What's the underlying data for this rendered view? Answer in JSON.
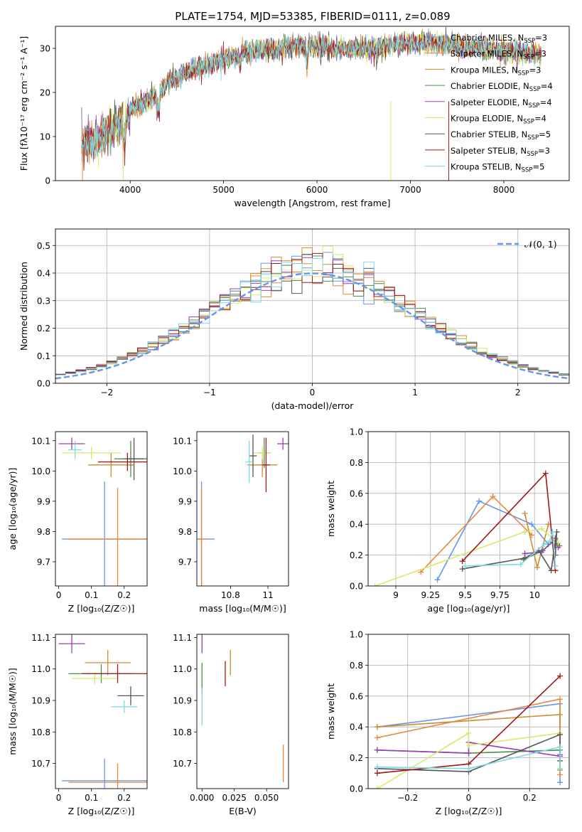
{
  "figure_title": "PLATE=1754, MJD=53385, FIBERID=0111, z=0.089",
  "colors": [
    "#6495ED",
    "#E8873A",
    "#D08A2E",
    "#4E8E4E",
    "#9B3DB5",
    "#D9E86A",
    "#555555",
    "#A01818",
    "#7FD9E0"
  ],
  "chart_data": [
    {
      "id": "spectrum",
      "type": "line",
      "title": "PLATE=1754, MJD=53385, FIBERID=0111, z=0.089",
      "xlabel": "wavelength [Angstrom, rest frame]",
      "ylabel": "Flux [fλ10⁻¹⁷ erg cm⁻² s⁻¹ A⁻¹]",
      "xlim": [
        3200,
        8700
      ],
      "ylim": [
        0,
        35
      ],
      "xticks": [
        4000,
        5000,
        6000,
        7000,
        8000
      ],
      "yticks": [
        0,
        10,
        20,
        30
      ],
      "legend_position": "right",
      "legend": [
        "Chabrier MILES, N_SSP=3",
        "Salpeter MILES, N_SSP=3",
        "Kroupa MILES, N_SSP=3",
        "Chabrier ELODIE, N_SSP=4",
        "Salpeter ELODIE, N_SSP=4",
        "Kroupa ELODIE, N_SSP=4",
        "Chabrier STELIB, N_SSP=5",
        "Salpeter STELIB, N_SSP=3",
        "Kroupa STELIB, N_SSP=5"
      ],
      "continuum_x": [
        3480,
        3700,
        3900,
        4000,
        4200,
        4400,
        4600,
        4800,
        5000,
        5200,
        5400,
        5600,
        5800,
        6000,
        6200,
        6400,
        6600,
        6800,
        7000,
        7200,
        7400,
        7600,
        7800,
        8000,
        8200,
        8400
      ],
      "continuum_y": [
        8,
        10,
        13,
        16,
        18,
        22,
        24.5,
        26,
        27.5,
        29,
        29.5,
        30,
        30.5,
        30.5,
        30,
        30,
        30,
        31,
        31,
        31.5,
        31,
        30,
        30,
        29.5,
        29,
        28.5
      ]
    },
    {
      "id": "residuals",
      "type": "area",
      "xlabel": "(data-model)/error",
      "ylabel": "Normed distribution",
      "xlim": [
        -2.5,
        2.5
      ],
      "ylim": [
        0,
        0.56
      ],
      "xticks": [
        -2,
        -1,
        0,
        1,
        2
      ],
      "yticks": [
        0.0,
        0.1,
        0.2,
        0.3,
        0.4,
        0.5
      ],
      "grid": true,
      "legend_position": "top-right",
      "legend": "𝒩(0, 1)",
      "bin_width": 0.1,
      "reference_curve": "normal(0,1)"
    },
    {
      "id": "Z-age",
      "type": "scatter",
      "xlabel": "Z [log₁₀(Z/Z☉)]",
      "ylabel": "age  [log₁₀(age/yr)]",
      "xlim": [
        -0.01,
        0.27
      ],
      "ylim": [
        9.62,
        10.13
      ],
      "xticks": [
        0.0,
        0.1,
        0.2
      ],
      "yticks": [
        9.7,
        9.8,
        9.9,
        10.0,
        10.1
      ],
      "points": [
        {
          "x": 0.14,
          "y": 9.775,
          "xerr": 0.13,
          "yerr": 0.19,
          "c": 0
        },
        {
          "x": 0.18,
          "y": 9.775,
          "xerr": 0.15,
          "yerr": 0.17,
          "c": 1
        },
        {
          "x": 0.16,
          "y": 10.02,
          "xerr": 0.07,
          "yerr": 0.04,
          "c": 2
        },
        {
          "x": 0.22,
          "y": 10.04,
          "xerr": 0.05,
          "yerr": 0.06,
          "c": 3
        },
        {
          "x": 0.04,
          "y": 10.09,
          "xerr": 0.04,
          "yerr": 0.02,
          "c": 4
        },
        {
          "x": 0.1,
          "y": 10.06,
          "xerr": 0.09,
          "yerr": 0.02,
          "c": 5
        },
        {
          "x": 0.23,
          "y": 10.04,
          "xerr": 0.03,
          "yerr": 0.07,
          "c": 6
        },
        {
          "x": 0.21,
          "y": 10.03,
          "xerr": 0.09,
          "yerr": 0.03,
          "c": 7
        },
        {
          "x": 0.05,
          "y": 10.07,
          "xerr": 0.02,
          "yerr": 0.03,
          "c": 8
        }
      ]
    },
    {
      "id": "mass-age",
      "type": "scatter",
      "xlabel": "mass [log₁₀(M/M☉)]",
      "ylabel": "",
      "xlim": [
        10.62,
        11.11
      ],
      "ylim": [
        9.62,
        10.13
      ],
      "xticks": [
        10.8,
        11.0
      ],
      "yticks": [
        9.7,
        9.8,
        9.9,
        10.0,
        10.1
      ],
      "points": [
        {
          "x": 10.645,
          "y": 9.775,
          "xerr": 0.07,
          "yerr": 0.19,
          "c": 0
        },
        {
          "x": 10.645,
          "y": 9.775,
          "xerr": 0.03,
          "yerr": 0.17,
          "c": 1
        },
        {
          "x": 10.97,
          "y": 10.02,
          "xerr": 0.08,
          "yerr": 0.04,
          "c": 2
        },
        {
          "x": 10.98,
          "y": 10.06,
          "xerr": 0.03,
          "yerr": 0.05,
          "c": 3
        },
        {
          "x": 11.08,
          "y": 10.09,
          "xerr": 0.03,
          "yerr": 0.02,
          "c": 4
        },
        {
          "x": 10.97,
          "y": 10.06,
          "xerr": 0.05,
          "yerr": 0.02,
          "c": 5
        },
        {
          "x": 10.92,
          "y": 10.05,
          "xerr": 0.02,
          "yerr": 0.07,
          "c": 6
        },
        {
          "x": 10.99,
          "y": 10.02,
          "xerr": 0.02,
          "yerr": 0.09,
          "c": 7
        },
        {
          "x": 10.9,
          "y": 10.03,
          "xerr": 0.02,
          "yerr": 0.07,
          "c": 8
        }
      ]
    },
    {
      "id": "age-weight",
      "type": "line",
      "xlabel": "age  [log₁₀(age/yr)]",
      "ylabel": "mass weight",
      "xlim": [
        8.8,
        10.25
      ],
      "ylim": [
        0,
        1
      ],
      "xticks": [
        9.0,
        9.25,
        9.5,
        9.75,
        10.0
      ],
      "yticks": [
        0.0,
        0.2,
        0.4,
        0.6,
        0.8,
        1.0
      ],
      "grid": true,
      "series": [
        {
          "c": 0,
          "x": [
            9.3,
            9.6,
            9.98,
            10.1
          ],
          "y": [
            0.04,
            0.55,
            0.4,
            0.27
          ]
        },
        {
          "c": 1,
          "x": [
            9.18,
            9.7,
            9.98
          ],
          "y": [
            0.09,
            0.58,
            0.33
          ]
        },
        {
          "c": 2,
          "x": [
            9.93,
            10.02,
            10.1
          ],
          "y": [
            0.47,
            0.12,
            0.4
          ]
        },
        {
          "c": 3,
          "x": [
            9.92,
            10.06,
            10.15,
            10.18
          ],
          "y": [
            0.17,
            0.23,
            0.3,
            0.26
          ]
        },
        {
          "c": 4,
          "x": [
            9.93,
            10.05,
            10.15,
            10.17
          ],
          "y": [
            0.21,
            0.22,
            0.31,
            0.25
          ]
        },
        {
          "c": 5,
          "x": [
            8.85,
            9.93,
            10.05,
            10.17
          ],
          "y": [
            0.0,
            0.35,
            0.37,
            0.28
          ]
        },
        {
          "c": 6,
          "x": [
            9.48,
            9.93,
            10.03,
            10.12,
            10.16,
            10.15
          ],
          "y": [
            0.11,
            0.18,
            0.23,
            0.1,
            0.35,
            0.2
          ]
        },
        {
          "c": 7,
          "x": [
            9.48,
            10.08,
            10.15
          ],
          "y": [
            0.16,
            0.73,
            0.1
          ]
        },
        {
          "c": 8,
          "x": [
            9.5,
            9.9,
            10.07,
            10.11,
            10.13,
            10.15
          ],
          "y": [
            0.13,
            0.14,
            0.27,
            0.29,
            0.35,
            0.13
          ]
        }
      ]
    },
    {
      "id": "Z-mass",
      "type": "scatter",
      "xlabel": "Z [log₁₀(Z/Z☉)]",
      "ylabel": "mass [log₁₀(M/M☉)]",
      "xlim": [
        -0.01,
        0.27
      ],
      "ylim": [
        10.62,
        11.11
      ],
      "xticks": [
        0.0,
        0.1,
        0.2
      ],
      "yticks": [
        10.7,
        10.8,
        10.9,
        11.0,
        11.1
      ],
      "points": [
        {
          "x": 0.14,
          "y": 10.645,
          "xerr": 0.13,
          "yerr": 0.07,
          "c": 0
        },
        {
          "x": 0.18,
          "y": 10.64,
          "xerr": 0.15,
          "yerr": 0.06,
          "c": 1
        },
        {
          "x": 0.15,
          "y": 11.02,
          "xerr": 0.07,
          "yerr": 0.04,
          "c": 2
        },
        {
          "x": 0.13,
          "y": 10.985,
          "xerr": 0.1,
          "yerr": 0.03,
          "c": 3
        },
        {
          "x": 0.04,
          "y": 11.08,
          "xerr": 0.04,
          "yerr": 0.03,
          "c": 4
        },
        {
          "x": 0.11,
          "y": 10.97,
          "xerr": 0.07,
          "yerr": 0.02,
          "c": 5
        },
        {
          "x": 0.22,
          "y": 10.915,
          "xerr": 0.04,
          "yerr": 0.03,
          "c": 6
        },
        {
          "x": 0.18,
          "y": 10.985,
          "xerr": 0.11,
          "yerr": 0.03,
          "c": 7
        },
        {
          "x": 0.2,
          "y": 10.88,
          "xerr": 0.04,
          "yerr": 0.02,
          "c": 8
        }
      ]
    },
    {
      "id": "ebv-mass",
      "type": "scatter",
      "xlabel": "E(B-V)",
      "ylabel": "",
      "xlim": [
        -0.004,
        0.067
      ],
      "ylim": [
        10.62,
        11.11
      ],
      "xticks": [
        0.0,
        0.025,
        0.05
      ],
      "xticklabels": [
        "0.000",
        "0.025",
        "0.050"
      ],
      "yticks": [
        10.7,
        10.8,
        10.9,
        11.0,
        11.1
      ],
      "points": [
        {
          "x": 0.063,
          "y": 10.7,
          "xerr": 0,
          "yerr": 0.06,
          "c": 1
        },
        {
          "x": 0.0,
          "y": 11.08,
          "xerr": 0,
          "yerr": 0.03,
          "c": 4
        },
        {
          "x": 0.0,
          "y": 10.97,
          "xerr": 0,
          "yerr": 0.05,
          "c": 3
        },
        {
          "x": 0.018,
          "y": 10.985,
          "xerr": 0,
          "yerr": 0.04,
          "c": 7
        },
        {
          "x": 0.022,
          "y": 11.02,
          "xerr": 0,
          "yerr": 0.04,
          "c": 2
        },
        {
          "x": 0.0,
          "y": 10.88,
          "xerr": 0,
          "yerr": 0.06,
          "c": 8
        }
      ]
    },
    {
      "id": "Z-weight",
      "type": "line",
      "xlabel": "Z [log₁₀(Z/Z☉)]",
      "ylabel": "mass weight",
      "xlim": [
        -0.33,
        0.33
      ],
      "ylim": [
        0,
        1
      ],
      "xticks": [
        -0.2,
        0.0,
        0.2
      ],
      "yticks": [
        0.0,
        0.2,
        0.4,
        0.6,
        0.8,
        1.0
      ],
      "grid": true,
      "series": [
        {
          "c": 0,
          "x": [
            -0.3,
            0.3,
            0.3
          ],
          "y": [
            0.4,
            0.55,
            0.04
          ]
        },
        {
          "c": 1,
          "x": [
            -0.3,
            0.3,
            0.3
          ],
          "y": [
            0.33,
            0.58,
            0.09
          ]
        },
        {
          "c": 2,
          "x": [
            -0.3,
            0.3,
            0.3
          ],
          "y": [
            0.4,
            0.48,
            0.12
          ]
        },
        {
          "c": 3,
          "x": [
            -0.3,
            0.0,
            0.3
          ],
          "y": [
            0.25,
            0.23,
            0.25
          ]
        },
        {
          "c": 4,
          "x": [
            -0.3,
            0.0,
            0.0,
            0.3,
            0.3
          ],
          "y": [
            0.25,
            0.23,
            0.3,
            0.21,
            0.22
          ]
        },
        {
          "c": 5,
          "x": [
            -0.3,
            0.0,
            0.0,
            0.3
          ],
          "y": [
            0.0,
            0.36,
            0.28,
            0.36
          ]
        },
        {
          "c": 6,
          "x": [
            -0.3,
            0.0,
            0.3,
            0.3
          ],
          "y": [
            0.13,
            0.11,
            0.35,
            0.18
          ]
        },
        {
          "c": 7,
          "x": [
            -0.3,
            0.0,
            0.3
          ],
          "y": [
            0.1,
            0.16,
            0.73
          ]
        },
        {
          "c": 8,
          "x": [
            -0.3,
            0.0,
            0.3,
            0.3
          ],
          "y": [
            0.14,
            0.13,
            0.27,
            0.13
          ]
        }
      ]
    }
  ]
}
